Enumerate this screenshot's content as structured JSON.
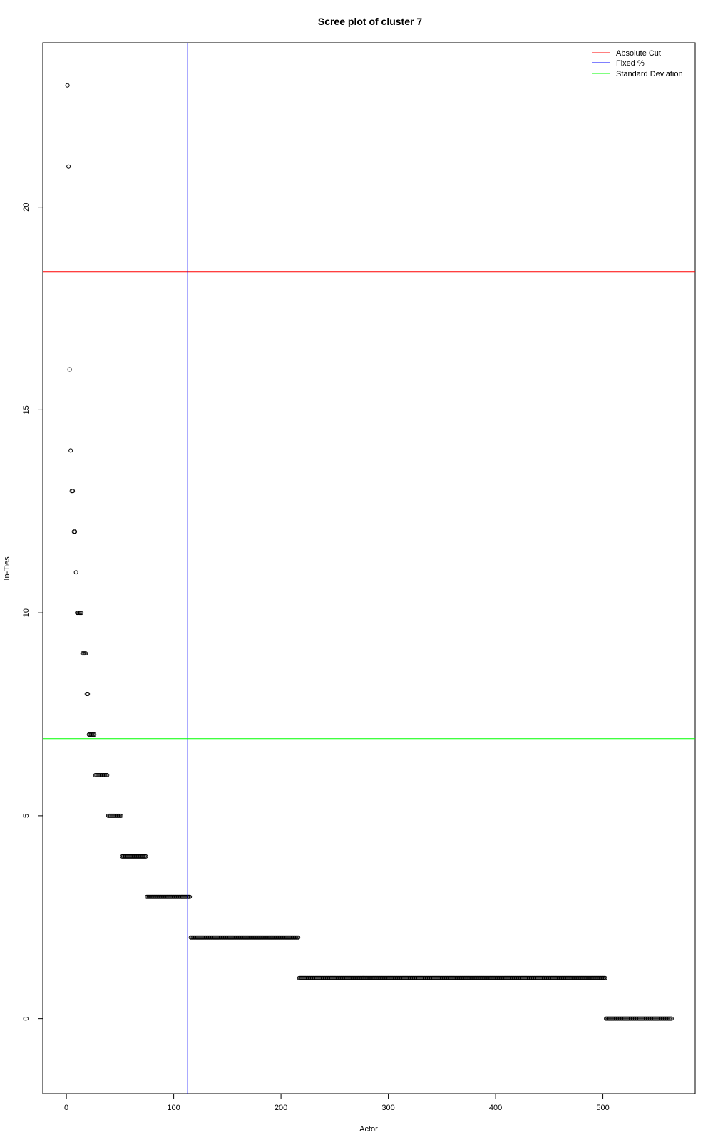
{
  "chart_data": {
    "type": "scatter",
    "title": "Scree plot of cluster 7",
    "xlabel": "Actor",
    "ylabel": "In-Ties",
    "xlim": [
      -22,
      586
    ],
    "ylim": [
      -1.85,
      24.05
    ],
    "x_ticks": [
      0,
      100,
      200,
      300,
      400,
      500
    ],
    "y_ticks": [
      0,
      5,
      10,
      15,
      20
    ],
    "grid": false,
    "legend_position": "top-right",
    "legend": [
      {
        "label": "Absolute Cut",
        "color": "#ff0000"
      },
      {
        "label": "Fixed %",
        "color": "#0000ff"
      },
      {
        "label": "Standard Deviation",
        "color": "#00ff00"
      }
    ],
    "reference_lines": {
      "absolute_cut_y": 18.4,
      "fixed_percent_x": 113,
      "standard_deviation_y": 6.9
    },
    "point_runs": [
      {
        "from": 1,
        "to": 1,
        "y": 23
      },
      {
        "from": 2,
        "to": 2,
        "y": 21
      },
      {
        "from": 3,
        "to": 3,
        "y": 16
      },
      {
        "from": 4,
        "to": 4,
        "y": 14
      },
      {
        "from": 5,
        "to": 6,
        "y": 13
      },
      {
        "from": 7,
        "to": 8,
        "y": 12
      },
      {
        "from": 9,
        "to": 9,
        "y": 11
      },
      {
        "from": 10,
        "to": 14,
        "y": 10
      },
      {
        "from": 15,
        "to": 18,
        "y": 9
      },
      {
        "from": 19,
        "to": 20,
        "y": 8
      },
      {
        "from": 21,
        "to": 26,
        "y": 7
      },
      {
        "from": 27,
        "to": 38,
        "y": 6
      },
      {
        "from": 39,
        "to": 51,
        "y": 5
      },
      {
        "from": 52,
        "to": 74,
        "y": 4
      },
      {
        "from": 75,
        "to": 115,
        "y": 3
      },
      {
        "from": 116,
        "to": 216,
        "y": 2
      },
      {
        "from": 217,
        "to": 502,
        "y": 1
      },
      {
        "from": 503,
        "to": 564,
        "y": 0
      }
    ]
  }
}
